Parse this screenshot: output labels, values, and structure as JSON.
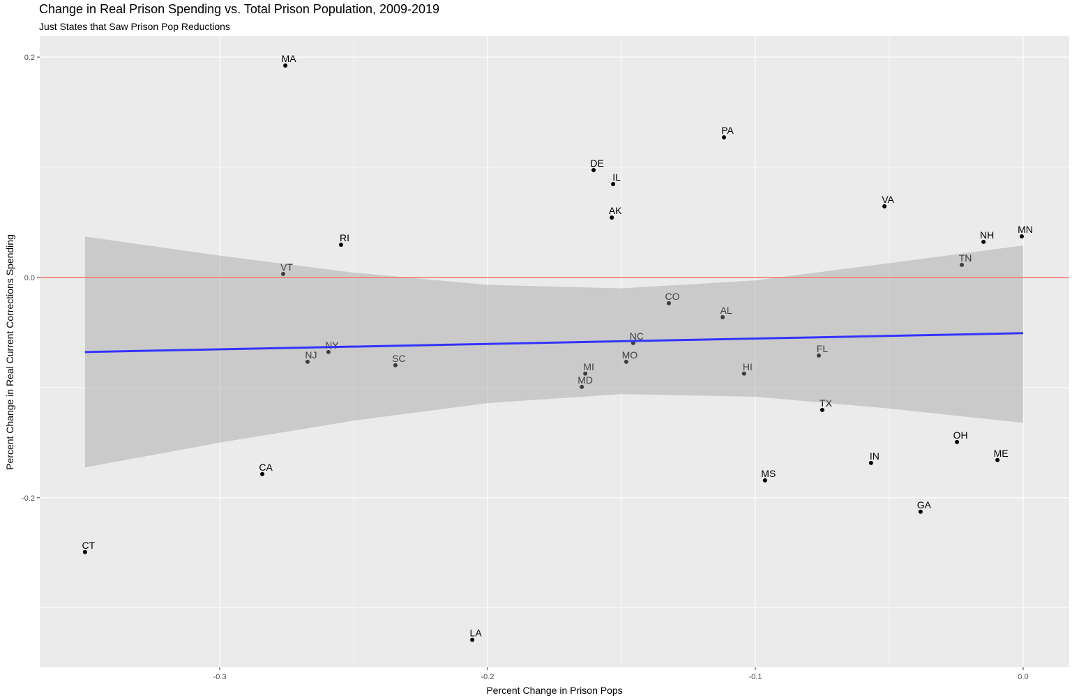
{
  "chart_data": {
    "type": "scatter",
    "title": "Change in Real Prison Spending vs. Total Prison Population, 2009-2019",
    "subtitle": "Just States that Saw Prison Pop Reductions",
    "xlabel": "Percent Change in Prison Pops",
    "ylabel": "Percent Change in Real Current Corrections Spending",
    "xlim": [
      -0.3672,
      0.0172
    ],
    "ylim": [
      -0.354,
      0.219
    ],
    "x_ticks": [
      -0.3,
      -0.2,
      -0.1,
      0.0
    ],
    "x_tick_labels": [
      "-0.3",
      "-0.2",
      "-0.1",
      "0.0"
    ],
    "x_minor": [
      -0.25,
      -0.15,
      -0.05
    ],
    "y_ticks": [
      -0.2,
      0.0,
      0.2
    ],
    "y_tick_labels": [
      "-0.2",
      "0.0",
      "0.2"
    ],
    "y_minor": [
      -0.3,
      -0.1,
      0.1
    ],
    "grid": true,
    "colors": {
      "panel": "#ebebeb",
      "grid": "#ffffff",
      "point": "#000000",
      "fit_line": "#3333ff",
      "band": "#999999",
      "reference_line": "#f8766d"
    },
    "reference_line_y": 0,
    "points": [
      {
        "label": "MA",
        "x": -0.2755,
        "y": 0.1924
      },
      {
        "label": "PA",
        "x": -0.1117,
        "y": 0.1272
      },
      {
        "label": "DE",
        "x": -0.1604,
        "y": 0.0975
      },
      {
        "label": "IL",
        "x": -0.1531,
        "y": 0.0848
      },
      {
        "label": "AK",
        "x": -0.1536,
        "y": 0.0544
      },
      {
        "label": "VA",
        "x": -0.0518,
        "y": 0.0646
      },
      {
        "label": "RI",
        "x": -0.2547,
        "y": 0.0297
      },
      {
        "label": "NH",
        "x": -0.0148,
        "y": 0.0323
      },
      {
        "label": "MN",
        "x": -0.0005,
        "y": 0.0373
      },
      {
        "label": "TN",
        "x": -0.0229,
        "y": 0.0114
      },
      {
        "label": "VT",
        "x": -0.2763,
        "y": 0.0032
      },
      {
        "label": "CO",
        "x": -0.1323,
        "y": -0.0234
      },
      {
        "label": "AL",
        "x": -0.1122,
        "y": -0.0361
      },
      {
        "label": "NC",
        "x": -0.1456,
        "y": -0.0595
      },
      {
        "label": "NY",
        "x": -0.2594,
        "y": -0.0677
      },
      {
        "label": "NJ",
        "x": -0.2672,
        "y": -0.0766
      },
      {
        "label": "SC",
        "x": -0.2344,
        "y": -0.0797
      },
      {
        "label": "FL",
        "x": -0.0763,
        "y": -0.0709
      },
      {
        "label": "MO",
        "x": -0.1482,
        "y": -0.0766
      },
      {
        "label": "MI",
        "x": -0.1635,
        "y": -0.0873
      },
      {
        "label": "HI",
        "x": -0.1042,
        "y": -0.0873
      },
      {
        "label": "MD",
        "x": -0.1648,
        "y": -0.0994
      },
      {
        "label": "TX",
        "x": -0.075,
        "y": -0.1203
      },
      {
        "label": "OH",
        "x": -0.0247,
        "y": -0.1494
      },
      {
        "label": "IN",
        "x": -0.0568,
        "y": -0.1684
      },
      {
        "label": "ME",
        "x": -0.0096,
        "y": -0.1658
      },
      {
        "label": "MS",
        "x": -0.0964,
        "y": -0.1842
      },
      {
        "label": "CA",
        "x": -0.2841,
        "y": -0.1785
      },
      {
        "label": "GA",
        "x": -0.0383,
        "y": -0.2127
      },
      {
        "label": "CT",
        "x": -0.3503,
        "y": -0.2494
      },
      {
        "label": "LA",
        "x": -0.2057,
        "y": -0.3291
      }
    ],
    "fit": {
      "method": "lm",
      "line": [
        {
          "x": -0.3503,
          "y": -0.0677
        },
        {
          "x": 0.0,
          "y": -0.0506
        }
      ],
      "band": [
        {
          "x": -0.3503,
          "lower": -0.1725,
          "upper": 0.0371
        },
        {
          "x": -0.3,
          "lower": -0.15,
          "upper": 0.0198
        },
        {
          "x": -0.25,
          "lower": -0.13,
          "upper": 0.0044
        },
        {
          "x": -0.2,
          "lower": -0.1141,
          "upper": -0.0067
        },
        {
          "x": -0.15,
          "lower": -0.1059,
          "upper": -0.0099
        },
        {
          "x": -0.1,
          "lower": -0.1083,
          "upper": -0.0027
        },
        {
          "x": -0.05,
          "lower": -0.119,
          "upper": 0.013
        },
        {
          "x": 0.0,
          "lower": -0.132,
          "upper": 0.029
        }
      ]
    }
  }
}
